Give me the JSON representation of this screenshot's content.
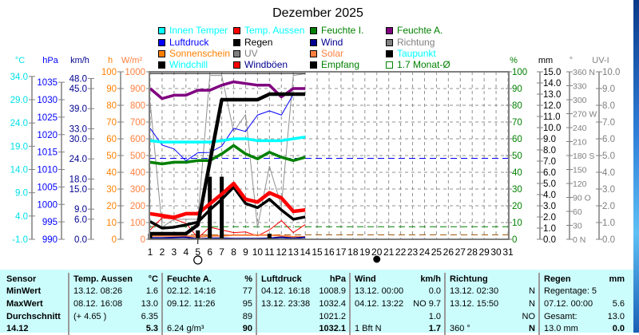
{
  "chart_data": {
    "type": "line",
    "title": "Dezember 2025",
    "x": [
      1,
      2,
      3,
      4,
      5,
      6,
      7,
      8,
      9,
      10,
      11,
      12,
      13,
      14
    ],
    "x_ticks": [
      "1",
      "2",
      "3",
      "4",
      "5",
      "6",
      "7",
      "8",
      "9",
      "10",
      "11",
      "12",
      "13",
      "14",
      "15",
      "16",
      "17",
      "18",
      "19",
      "20",
      "21",
      "22",
      "23",
      "24",
      "25",
      "26",
      "27",
      "28",
      "29",
      "30",
      "31"
    ],
    "xlim": [
      1,
      31
    ],
    "grid": true,
    "moon_phases": [
      {
        "day": 5,
        "phase": "full"
      },
      {
        "day": 20,
        "phase": "new"
      }
    ],
    "axes": [
      {
        "id": "degC",
        "unit": "°C",
        "range": [
          -1,
          35
        ],
        "ticks": [
          -1,
          4,
          9,
          14,
          19,
          24,
          29,
          34
        ],
        "labels": [
          "-1.0",
          "4.0",
          "9.0",
          "14.0",
          "19.0",
          "24.0",
          "29.0",
          "34.0"
        ],
        "color": "#00e0e8"
      },
      {
        "id": "hpa",
        "unit": "hPa",
        "range": [
          990,
          1038
        ],
        "ticks": [
          990,
          995,
          1000,
          1005,
          1010,
          1015,
          1020,
          1025,
          1030,
          1035
        ],
        "labels": [
          "990",
          "995",
          "1000",
          "1005",
          "1010",
          "1015",
          "1020",
          "1025",
          "1030",
          "1035"
        ],
        "color": "#0000ff"
      },
      {
        "id": "kmh",
        "unit": "km/h",
        "range": [
          0,
          50
        ],
        "ticks": [
          0,
          6,
          9,
          15,
          18,
          24,
          30,
          33,
          39,
          45,
          48
        ],
        "labels": [
          "0.0",
          "6.0",
          "9.0",
          "15.0",
          "18.0",
          "24.0",
          "30.0",
          "33.0",
          "39.0",
          "45.0",
          "48.0"
        ],
        "color": "#000090"
      },
      {
        "id": "h",
        "unit": "h",
        "range": [
          0,
          100
        ],
        "ticks": [
          0,
          10,
          20,
          30,
          40,
          50,
          60,
          70,
          80,
          90,
          100
        ],
        "labels": [
          "0",
          "10",
          "20",
          "30",
          "40",
          "50",
          "60",
          "70",
          "80",
          "90",
          "100"
        ],
        "color": "#ff8000"
      },
      {
        "id": "wm2",
        "unit": "W/m²",
        "range": [
          0,
          1000
        ],
        "ticks": [
          0,
          100,
          200,
          300,
          400,
          500,
          600,
          700,
          800,
          900,
          1000
        ],
        "labels": [
          "0",
          "100",
          "200",
          "300",
          "400",
          "500",
          "600",
          "700",
          "800",
          "900",
          "1000"
        ],
        "color": "#ff8040"
      },
      {
        "id": "pct",
        "unit": "%",
        "range": [
          0,
          100
        ],
        "ticks": [
          0,
          10,
          20,
          30,
          40,
          50,
          60,
          70,
          80,
          90,
          100
        ],
        "labels": [
          "0",
          "10",
          "20",
          "30",
          "40",
          "50",
          "60",
          "70",
          "80",
          "90",
          "100"
        ],
        "color": "#008000"
      },
      {
        "id": "mm",
        "unit": "mm",
        "range": [
          0,
          15
        ],
        "ticks": [
          0,
          1,
          2,
          3,
          4,
          5,
          6,
          7,
          8,
          9,
          10,
          11,
          12,
          13,
          14,
          15
        ],
        "labels": [
          "0.0",
          "1.0",
          "2.0",
          "3.0",
          "4.0",
          "5.0",
          "6.0",
          "7.0",
          "8.0",
          "9.0",
          "10.0",
          "11.0",
          "12.0",
          "13.0",
          "14.0",
          "15.0"
        ],
        "color": "#000000"
      },
      {
        "id": "deg",
        "unit": "°",
        "range": [
          0,
          360
        ],
        "ticks": [
          0,
          30,
          60,
          90,
          120,
          150,
          180,
          210,
          240,
          270,
          300,
          330,
          360
        ],
        "labels": [
          "0    N",
          "30",
          "60",
          "90   O",
          "120",
          "150",
          "180 S",
          "210",
          "240",
          "270 W",
          "300",
          "330",
          "360 N"
        ],
        "color": "#808080"
      },
      {
        "id": "uv",
        "unit": "UV-I",
        "range": [
          0,
          10
        ],
        "ticks": [
          0,
          1,
          2,
          3,
          4,
          5,
          6,
          7,
          8,
          9,
          10
        ],
        "labels": [
          "0.0",
          "1.0",
          "2.0",
          "3.0",
          "4.0",
          "5.0",
          "6.0",
          "7.0",
          "8.0",
          "9.0",
          "10.0"
        ],
        "color": "#808080"
      }
    ],
    "series": [
      {
        "name": "Richtung",
        "axis": "deg",
        "color": "#909090",
        "kind": "thin",
        "values": [
          295,
          26,
          43,
          43,
          43,
          352,
          352,
          231,
          268,
          26,
          157,
          71,
          352,
          356
        ]
      },
      {
        "name": "Luftdruck",
        "axis": "hpa",
        "color": "#0000ff",
        "kind": "thin",
        "values": [
          1021.8,
          1017.0,
          1015.9,
          1012.5,
          1014.8,
          1014.9,
          1016.7,
          1021.8,
          1020.9,
          1025.6,
          1026.8,
          1025.6,
          1031.5,
          1031.9
        ]
      },
      {
        "name": "Windböen",
        "axis": "kmh",
        "color": "#ff0000",
        "kind": "thin",
        "values": [
          2.8,
          6.4,
          6.0,
          4.8,
          0.4,
          3.6,
          2.8,
          2.0,
          2.2,
          1.0,
          2.8,
          5.6,
          2.0,
          4.4
        ]
      },
      {
        "name": "Solar",
        "axis": "wm2",
        "color": "#ff8040",
        "kind": "mid",
        "values": [
          20,
          20,
          20,
          20,
          15,
          20,
          20,
          25,
          25,
          25,
          25,
          20,
          15,
          15
        ]
      },
      {
        "name": "Wind",
        "axis": "kmh",
        "color": "#000090",
        "kind": "mid",
        "values": [
          0.4,
          0.4,
          0.5,
          0.6,
          0.1,
          0.3,
          0.3,
          0.2,
          0.2,
          0.2,
          0.3,
          0.6,
          0.3,
          0.6
        ]
      },
      {
        "name": "Empfang",
        "axis": "pct",
        "color": "#000000",
        "kind": "thin",
        "values": [
          99,
          99,
          99,
          99,
          99,
          99,
          99,
          99,
          99,
          99,
          99,
          99,
          99,
          99
        ]
      },
      {
        "name": "Feuchte A.",
        "axis": "pct",
        "color": "#800080",
        "kind": "thick",
        "values": [
          90,
          84,
          86,
          86,
          89,
          89,
          92,
          94,
          93,
          92,
          92,
          85,
          90,
          90
        ]
      },
      {
        "name": "Innen Temper",
        "axis": "degC",
        "color": "#00ffff",
        "kind": "thick",
        "values": [
          20.2,
          19.9,
          19.9,
          19.9,
          19.9,
          19.9,
          20.2,
          20.6,
          20.6,
          20.2,
          20.2,
          20.2,
          20.6,
          21.0
        ]
      },
      {
        "name": "Feuchte I.",
        "axis": "pct",
        "color": "#008000",
        "kind": "thick",
        "values": [
          46,
          45,
          46,
          46,
          47,
          47,
          51,
          56,
          51,
          48,
          52,
          49,
          47,
          49
        ]
      },
      {
        "name": "Taupunkt",
        "axis": "degC",
        "color": "#000000",
        "kind": "thick",
        "values": [
          2.8,
          1.4,
          1.6,
          2.1,
          2.7,
          5.3,
          7.6,
          10.2,
          6.7,
          5.8,
          7.6,
          5.3,
          3.3,
          3.8
        ]
      },
      {
        "name": "Temp. Aussen",
        "axis": "degC",
        "color": "#ff0000",
        "kind": "xthick",
        "values": [
          4.5,
          4.1,
          3.7,
          4.5,
          4.5,
          6.6,
          8.7,
          11.0,
          7.6,
          7.0,
          9.0,
          7.9,
          5.0,
          5.3
        ]
      },
      {
        "name": "Regen",
        "axis": "mm",
        "color": "#000000",
        "kind": "xthick",
        "values": [
          0.5,
          0.5,
          0.5,
          0.5,
          1.3,
          6.9,
          12.5,
          12.5,
          12.5,
          12.5,
          13.0,
          13.0,
          13.0,
          13.0
        ]
      }
    ],
    "daily_rain_mm": {
      "axis": "mm",
      "days": [
        1,
        5,
        6,
        7,
        11
      ],
      "values": [
        0.5,
        0.8,
        5.6,
        5.6,
        0.5
      ]
    },
    "reference_lines": [
      {
        "axis": "hpa",
        "value": 1013.2,
        "color": "#0000ff"
      },
      {
        "axis": "pct",
        "value": 7.5,
        "color": "#008000"
      },
      {
        "axis": "pct",
        "value": 2.7,
        "color": "#a05000"
      }
    ]
  },
  "legend": [
    {
      "label": "Innen Temper",
      "swatch": "#00ffff",
      "text": "#00ffff"
    },
    {
      "label": "Luftdruck",
      "swatch": "#0000ff",
      "text": "#0000ff"
    },
    {
      "label": "Sonnenschein",
      "swatch": "#ff8000",
      "text": "#ff8000"
    },
    {
      "label": "Windchill",
      "swatch": "#000000",
      "text": "#00ffff"
    },
    {
      "label": "Temp. Aussen",
      "swatch": "#ff0000",
      "text": "#00ffff"
    },
    {
      "label": "Regen",
      "swatch": "#000000",
      "text": "#000000"
    },
    {
      "label": "UV",
      "swatch": "#808080",
      "text": "#808080"
    },
    {
      "label": "Windböen",
      "swatch": "#ff0000",
      "text": "#000090"
    },
    {
      "label": "Feuchte I.",
      "swatch": "#008000",
      "text": "#008000"
    },
    {
      "label": "Wind",
      "swatch": "#000090",
      "text": "#000090"
    },
    {
      "label": "Solar",
      "swatch": "#ff8040",
      "text": "#ff8040"
    },
    {
      "label": "Empfang",
      "swatch": "#000000",
      "text": "#008000"
    },
    {
      "label": "Feuchte A.",
      "swatch": "#800080",
      "text": "#008000"
    },
    {
      "label": "Richtung",
      "swatch": "#808080",
      "text": "#808080"
    },
    {
      "label": "Taupunkt",
      "swatch": "#000000",
      "text": "#00ffff"
    },
    {
      "label": "1.7 Monat-Ø",
      "swatch": "#ffffff",
      "text": "#008000"
    }
  ],
  "table": {
    "header": {
      "sensor": "Sensor",
      "temp": "Temp. Aussen",
      "temp_unit": "°C",
      "hum": "Feuchte A.",
      "hum_unit": "%",
      "press": "Luftdruck",
      "press_unit": "hPa",
      "wind": "Wind",
      "wind_unit": "km/h",
      "dir": "Richtung",
      "dir_unit": "",
      "rain": "Regen",
      "rain_unit": "mm"
    },
    "min": {
      "sensor": "MinWert",
      "temp": "13.12.  08:26",
      "temp_unit": "1.6",
      "hum": "02.12.  14:16",
      "hum_unit": "77",
      "press": "04.12.  16:18",
      "press_unit": "1008.9",
      "wind": "13.12.  00:00",
      "wind_unit": "0.0",
      "dir": "13.12.  02:30",
      "dir_unit": "N",
      "rain": "Regentage: 5",
      "rain_unit": ""
    },
    "max": {
      "sensor": "MaxWert",
      "temp": "08.12.  16:08",
      "temp_unit": "13.0",
      "hum": "09.12.  11:26",
      "hum_unit": "95",
      "press": "13.12.  23:38",
      "press_unit": "1032.4",
      "wind": "04.12.  13:22",
      "wind_unit": "NO 9.7",
      "dir": "13.12.  15:50",
      "dir_unit": "N",
      "rain": "07.12.  00:00",
      "rain_unit": "5.6"
    },
    "avg": {
      "sensor": "Durchschnitt",
      "temp": "(+ 4.65 )",
      "temp_unit": "6.35",
      "hum": "",
      "hum_unit": "89",
      "press": "",
      "press_unit": "1021.2",
      "wind": "",
      "wind_unit": "1.0",
      "dir": "",
      "dir_unit": "NO",
      "rain": "Gesamt:",
      "rain_unit": "13.0"
    },
    "cur": {
      "sensor": "14.12",
      "temp": "",
      "temp_unit": "5.3",
      "hum": "6.24 g/m³",
      "hum_unit": "90",
      "press": "",
      "press_unit": "1032.1",
      "wind": "1 Bft N",
      "wind_unit": "1.7",
      "dir": "360 °",
      "dir_unit": "N",
      "rain": "13.0 mm",
      "rain_unit": "0.0"
    }
  }
}
